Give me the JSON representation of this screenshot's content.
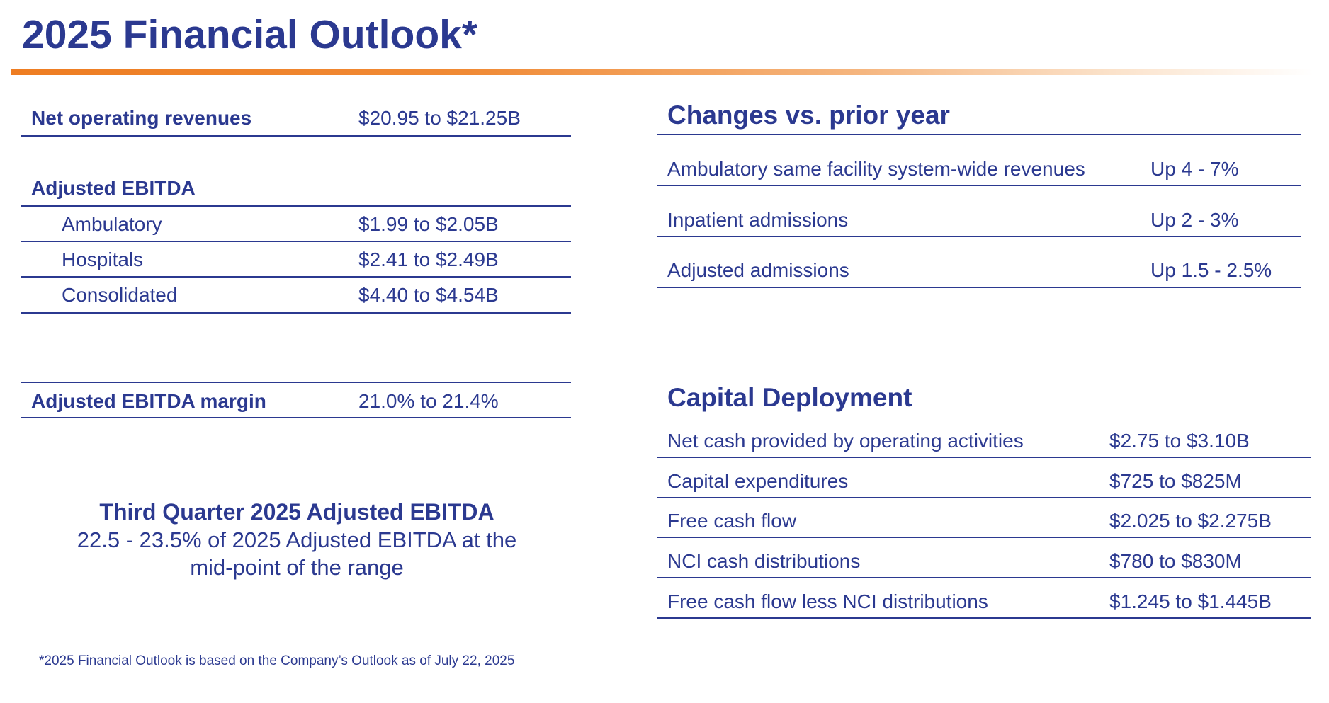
{
  "title": "2025 Financial Outlook*",
  "left": {
    "net_operating_revenues": {
      "label": "Net operating revenues",
      "value": "$20.95 to $21.25B"
    },
    "adjusted_ebitda": {
      "heading": "Adjusted EBITDA",
      "rows": [
        {
          "label": "Ambulatory",
          "value": "$1.99 to $2.05B"
        },
        {
          "label": "Hospitals",
          "value": "$2.41 to $2.49B"
        },
        {
          "label": "Consolidated",
          "value": "$4.40 to $4.54B"
        }
      ]
    },
    "adjusted_ebitda_margin": {
      "label": "Adjusted EBITDA margin",
      "value": "21.0% to 21.4%"
    },
    "third_quarter": {
      "title": "Third Quarter 2025 Adjusted EBITDA",
      "line1": "22.5 - 23.5% of 2025 Adjusted EBITDA at the",
      "line2": "mid-point of the range"
    }
  },
  "changes": {
    "heading": "Changes vs. prior year",
    "rows": [
      {
        "label": "Ambulatory same facility system-wide revenues",
        "value": "Up 4 - 7%"
      },
      {
        "label": "Inpatient admissions",
        "value": "Up 2 - 3%"
      },
      {
        "label": "Adjusted admissions",
        "value": "Up 1.5 - 2.5%"
      }
    ]
  },
  "capital": {
    "heading": "Capital Deployment",
    "rows": [
      {
        "label": "Net cash provided by operating activities",
        "value": "$2.75 to $3.10B"
      },
      {
        "label": "Capital expenditures",
        "value": "$725 to $825M"
      },
      {
        "label": "Free cash flow",
        "value": "$2.025 to $2.275B"
      },
      {
        "label": "NCI cash distributions",
        "value": "$780 to $830M"
      },
      {
        "label": "Free cash flow less NCI distributions",
        "value": "$1.245 to $1.445B"
      }
    ]
  },
  "footnote": "*2025 Financial Outlook is based on the Company’s Outlook as of July 22, 2025"
}
